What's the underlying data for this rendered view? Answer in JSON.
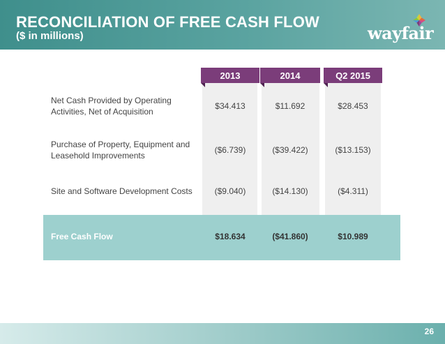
{
  "header": {
    "title": "RECONCILIATION OF FREE CASH FLOW",
    "subtitle": "($ in millions)",
    "logo_text": "wayfair"
  },
  "table": {
    "columns": [
      "2013",
      "2014",
      "Q2 2015"
    ],
    "rows": [
      {
        "label": "Net Cash Provided by Operating Activities, Net of Acquisition",
        "values": [
          "$34.413",
          "$11.692",
          "$28.453"
        ]
      },
      {
        "label": "Purchase of Property, Equipment and Leasehold Improvements",
        "values": [
          "($6.739)",
          "($39.422)",
          "($13.153)"
        ]
      },
      {
        "label": "Site and Software Development Costs",
        "values": [
          "($9.040)",
          "($14.130)",
          "($4.311)"
        ]
      },
      {
        "label": "Free Cash Flow",
        "values": [
          "$18.634",
          "($41.860)",
          "$10.989"
        ]
      }
    ]
  },
  "footer": {
    "page_number": "26"
  },
  "colors": {
    "header_teal": "#3f8f8c",
    "column_header_purple": "#7b3d7a",
    "free_cash_row": "#9dd0ce",
    "column_background": "#efefef"
  }
}
